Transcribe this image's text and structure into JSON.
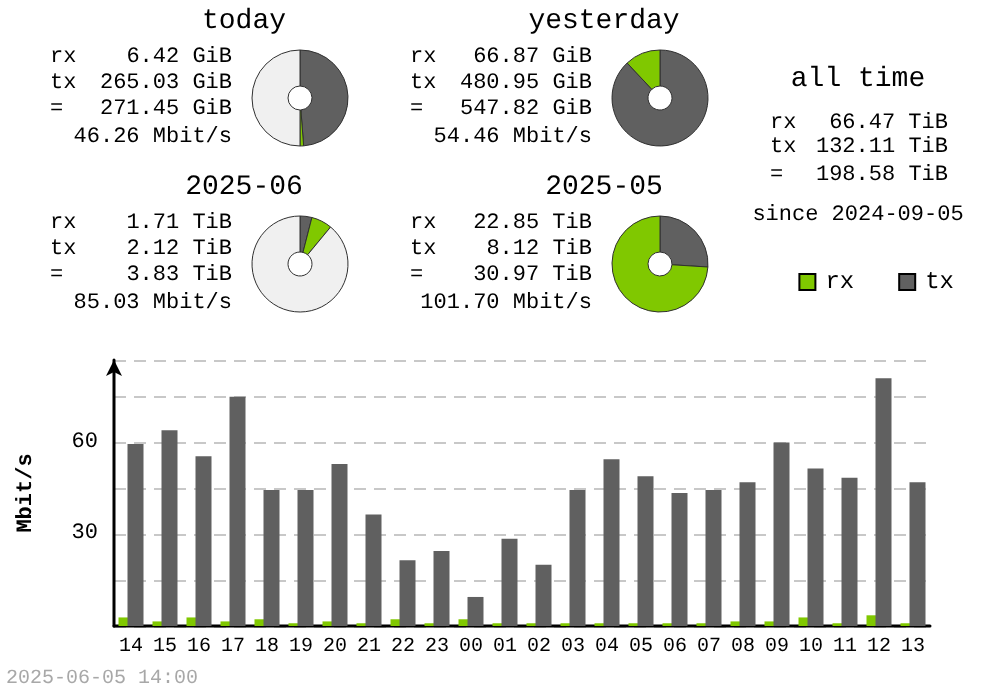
{
  "chart_data": [
    {
      "type": "donut",
      "title": "today",
      "categories": [
        null,
        null,
        null
      ],
      "values": [
        48.8,
        1.2,
        50
      ],
      "colors": [
        "#606060",
        "#80c800",
        "#f0f0f0"
      ],
      "annotations": [
        "rx",
        "6.42 GiB",
        "tx",
        "265.03 GiB",
        "=",
        "271.45 GiB",
        "46.26 Mbit/s"
      ],
      "legend": false
    },
    {
      "type": "donut",
      "title": "yesterday",
      "categories": [
        null,
        null
      ],
      "values": [
        88,
        12
      ],
      "colors": [
        "#606060",
        "#80c800"
      ],
      "annotations": [
        "rx",
        "66.87 GiB",
        "tx",
        "480.95 GiB",
        "=",
        "547.82 GiB",
        "54.46 Mbit/s"
      ],
      "legend": false
    },
    {
      "type": "other",
      "title": "all time",
      "annotations": [
        "rx",
        "66.47 TiB",
        "tx",
        "132.11 TiB",
        "=",
        "198.58 TiB",
        "since 2024-09-05"
      ]
    },
    {
      "type": "donut",
      "title": "2025-06",
      "categories": [
        null,
        null,
        null
      ],
      "values": [
        4,
        7,
        89
      ],
      "colors": [
        "#606060",
        "#80c800",
        "#f0f0f0"
      ],
      "annotations": [
        "rx",
        "1.71 TiB",
        "tx",
        "2.12 TiB",
        "=",
        "3.83 TiB",
        "85.03 Mbit/s"
      ],
      "legend": false
    },
    {
      "type": "donut",
      "title": "2025-05",
      "categories": [
        null,
        null
      ],
      "values": [
        26,
        74
      ],
      "colors": [
        "#606060",
        "#80c800"
      ],
      "annotations": [
        "rx",
        "22.85 TiB",
        "tx",
        "8.12 TiB",
        "=",
        "30.97 TiB",
        "101.70 Mbit/s"
      ],
      "legend": false
    },
    {
      "type": "bar",
      "ylabel": "Mbit/s",
      "categories": [
        "14",
        "15",
        "16",
        "17",
        "18",
        "19",
        "20",
        "21",
        "22",
        "23",
        "00",
        "01",
        "02",
        "03",
        "04",
        "05",
        "06",
        "07",
        "08",
        "09",
        "10",
        "11",
        "12",
        "13"
      ],
      "series": [
        {
          "name": "rx",
          "color": "#80c800",
          "values": [
            2.8,
            1.5,
            2.8,
            1.5,
            2.2,
            0.9,
            1.5,
            0.9,
            2.2,
            0.9,
            2.2,
            0.9,
            0.9,
            0.9,
            0.9,
            0.9,
            0.9,
            0.9,
            1.5,
            1.5,
            2.8,
            0.9,
            3.5,
            0.9
          ]
        },
        {
          "name": "tx",
          "color": "#606060",
          "values": [
            59.5,
            64,
            55.5,
            75,
            44.5,
            44.5,
            53,
            36.5,
            21.5,
            24.5,
            9.5,
            28.5,
            20,
            44.5,
            54.5,
            49,
            43.5,
            44.5,
            47,
            60,
            51.5,
            48.5,
            81,
            47
          ]
        }
      ],
      "ylim": [
        0,
        87
      ],
      "yticks": [
        {
          "value": 0,
          "label": null
        },
        {
          "value": 15,
          "label": null
        },
        30,
        {
          "value": 45,
          "label": null
        },
        60,
        {
          "value": 75,
          "label": null
        }
      ],
      "grid": "y",
      "legend": "top right",
      "annotations": [
        "2025-06-05 14:00"
      ]
    }
  ]
}
